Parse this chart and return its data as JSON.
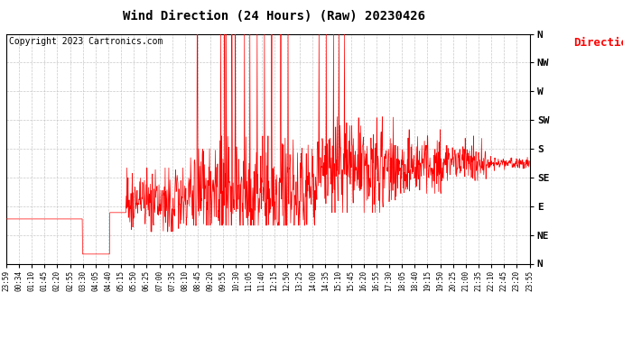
{
  "title": "Wind Direction (24 Hours) (Raw) 20230426",
  "copyright": "Copyright 2023 Cartronics.com",
  "legend_label": "Direction",
  "legend_color": "#ff0000",
  "copyright_color": "#000000",
  "background_color": "#ffffff",
  "grid_color": "#bbbbbb",
  "line_color_red": "#ff0000",
  "line_color_black": "#000000",
  "ytick_labels": [
    "N",
    "NE",
    "E",
    "SE",
    "S",
    "SW",
    "W",
    "NW",
    "N"
  ],
  "ytick_values": [
    0,
    45,
    90,
    135,
    180,
    225,
    270,
    315,
    360
  ],
  "ylim": [
    0,
    360
  ],
  "xtick_labels": [
    "23:59",
    "00:34",
    "01:10",
    "01:45",
    "02:20",
    "02:55",
    "03:30",
    "04:05",
    "04:40",
    "05:15",
    "05:50",
    "06:25",
    "07:00",
    "07:35",
    "08:10",
    "08:45",
    "09:20",
    "09:55",
    "10:30",
    "11:05",
    "11:40",
    "12:15",
    "12:50",
    "13:25",
    "14:00",
    "14:35",
    "15:10",
    "15:45",
    "16:20",
    "16:55",
    "17:30",
    "18:05",
    "18:40",
    "19:15",
    "19:50",
    "20:25",
    "21:00",
    "21:35",
    "22:10",
    "22:45",
    "23:20",
    "23:55"
  ],
  "num_points": 1440,
  "title_fontsize": 10,
  "copyright_fontsize": 7,
  "ytick_fontsize": 8,
  "xtick_fontsize": 5.5
}
